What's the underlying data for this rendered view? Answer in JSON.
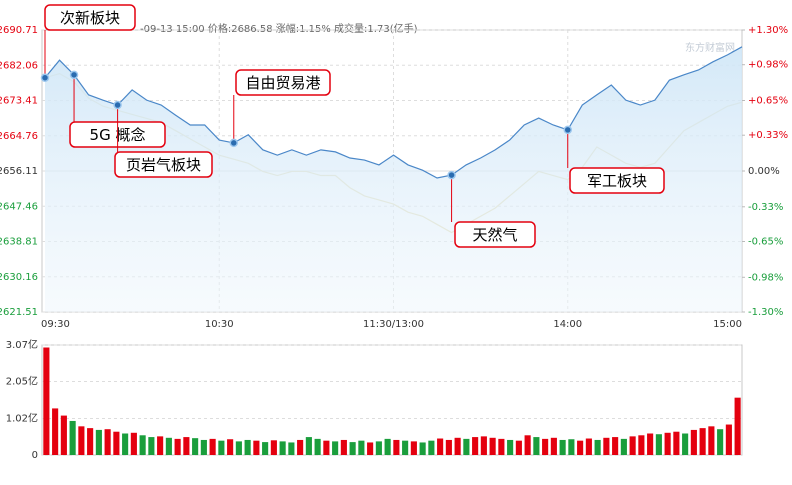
{
  "chart_data": [
    {
      "type": "line",
      "subtitle": "-09-13 15:00 价格:2686.58 涨幅:1.15% 成交量:1.73(亿手)",
      "watermark": "东方财富网",
      "x": [
        0,
        5,
        10,
        15,
        20,
        25,
        30,
        35,
        40,
        45,
        50,
        55,
        60,
        65,
        70,
        75,
        80,
        85,
        90,
        95,
        100,
        105,
        110,
        115,
        120,
        125,
        130,
        135,
        140,
        145,
        150,
        155,
        160,
        165,
        170,
        175,
        180,
        185,
        190,
        195,
        200,
        205,
        210,
        215,
        220,
        225,
        230,
        235,
        240
      ],
      "xlim": [
        0,
        240
      ],
      "xticks": [
        {
          "value": 0,
          "label": "09:30"
        },
        {
          "value": 60,
          "label": "10:30"
        },
        {
          "value": 120,
          "label": "11:30/13:00"
        },
        {
          "value": 180,
          "label": "14:00"
        },
        {
          "value": 240,
          "label": "15:00"
        }
      ],
      "ylim": [
        2621.51,
        2690.71
      ],
      "yticks": [
        2690.71,
        2682.06,
        2673.41,
        2664.76,
        2656.11,
        2647.46,
        2638.81,
        2630.16,
        2621.51
      ],
      "y2lim": [
        -1.3,
        1.3
      ],
      "y2ticks": [
        {
          "value": 1.3,
          "label": "+1.30%"
        },
        {
          "value": 0.98,
          "label": "+0.98%"
        },
        {
          "value": 0.65,
          "label": "+0.65%"
        },
        {
          "value": 0.33,
          "label": "+0.33%"
        },
        {
          "value": 0,
          "label": "0.00%"
        },
        {
          "value": -0.33,
          "label": "-0.33%"
        },
        {
          "value": -0.65,
          "label": "-0.65%"
        },
        {
          "value": -0.98,
          "label": "-0.98%"
        },
        {
          "value": -1.3,
          "label": "-1.30%"
        }
      ],
      "up_color": "#e4000f",
      "down_color": "#1a9e3c",
      "grid": true,
      "series": [
        {
          "color": "#4a87c8",
          "values": [
            2679,
            2683.3,
            2679.7,
            2674.8,
            2673.5,
            2672.3,
            2676,
            2673.5,
            2672.3,
            2669.8,
            2667.4,
            2667.4,
            2663.7,
            2663,
            2665,
            2661.3,
            2660,
            2661.3,
            2660,
            2661.3,
            2660.8,
            2659.3,
            2658.8,
            2657.6,
            2660,
            2657.6,
            2656.3,
            2654.4,
            2655.1,
            2657.6,
            2659.3,
            2661.3,
            2663.7,
            2667.4,
            2669.1,
            2667.4,
            2666.2,
            2672.3,
            2674.8,
            2677.2,
            2673.5,
            2672.3,
            2673.5,
            2678.4,
            2679.7,
            2680.9,
            2682.9,
            2684.6,
            2686.58
          ]
        },
        {
          "color": "#e6dcae",
          "values": [
            2679,
            2680,
            2678,
            2674,
            2672,
            2671,
            2670,
            2669,
            2668,
            2666,
            2664,
            2662,
            2660,
            2659,
            2658,
            2656,
            2655,
            2656,
            2656,
            2655,
            2655,
            2652,
            2650,
            2649,
            2648,
            2646,
            2645,
            2643,
            2641,
            2643,
            2645,
            2647,
            2650,
            2653,
            2656,
            2655,
            2654,
            2657,
            2662,
            2660,
            2658,
            2657,
            2658,
            2662,
            2666,
            2668,
            2670,
            2672,
            2673
          ]
        }
      ],
      "annotations": [
        {
          "label": "次新板块",
          "x": 0
        },
        {
          "label": "5G 概念",
          "x": 10
        },
        {
          "label": "页岩气板块",
          "x": 25
        },
        {
          "label": "自由贸易港",
          "x": 65
        },
        {
          "label": "天然气",
          "x": 140
        },
        {
          "label": "军工板块",
          "x": 180
        }
      ]
    },
    {
      "type": "bar",
      "ylim": [
        0,
        3.07
      ],
      "yticks": [
        {
          "value": 3.07,
          "label": "3.07亿"
        },
        {
          "value": 2.05,
          "label": "2.05亿"
        },
        {
          "value": 1.02,
          "label": "1.02亿"
        },
        0
      ],
      "values": [
        3.0,
        1.3,
        1.1,
        0.95,
        0.8,
        0.75,
        0.7,
        0.72,
        0.65,
        0.6,
        0.62,
        0.55,
        0.5,
        0.52,
        0.48,
        0.45,
        0.5,
        0.47,
        0.42,
        0.45,
        0.4,
        0.44,
        0.38,
        0.42,
        0.4,
        0.36,
        0.41,
        0.38,
        0.35,
        0.42,
        0.5,
        0.45,
        0.4,
        0.38,
        0.42,
        0.36,
        0.4,
        0.35,
        0.38,
        0.45,
        0.42,
        0.4,
        0.38,
        0.35,
        0.4,
        0.46,
        0.42,
        0.48,
        0.45,
        0.5,
        0.52,
        0.48,
        0.45,
        0.42,
        0.4,
        0.55,
        0.5,
        0.45,
        0.48,
        0.42,
        0.44,
        0.4,
        0.46,
        0.42,
        0.48,
        0.5,
        0.45,
        0.52,
        0.55,
        0.6,
        0.58,
        0.62,
        0.65,
        0.6,
        0.7,
        0.75,
        0.8,
        0.72,
        0.85,
        1.6
      ],
      "colors": [
        "#e4000f",
        "#e4000f",
        "#e4000f",
        "#1a9e3c",
        "#e4000f",
        "#e4000f",
        "#1a9e3c",
        "#e4000f",
        "#e4000f",
        "#1a9e3c",
        "#e4000f",
        "#1a9e3c",
        "#1a9e3c",
        "#e4000f",
        "#1a9e3c",
        "#e4000f",
        "#e4000f",
        "#1a9e3c",
        "#1a9e3c",
        "#e4000f",
        "#1a9e3c",
        "#e4000f",
        "#1a9e3c",
        "#1a9e3c",
        "#e4000f",
        "#1a9e3c",
        "#e4000f",
        "#1a9e3c",
        "#1a9e3c",
        "#e4000f",
        "#1a9e3c",
        "#1a9e3c",
        "#e4000f",
        "#1a9e3c",
        "#e4000f",
        "#1a9e3c",
        "#1a9e3c",
        "#e4000f",
        "#1a9e3c",
        "#1a9e3c",
        "#e4000f",
        "#1a9e3c",
        "#e4000f",
        "#1a9e3c",
        "#1a9e3c",
        "#e4000f",
        "#e4000f",
        "#e4000f",
        "#1a9e3c",
        "#e4000f",
        "#e4000f",
        "#e4000f",
        "#e4000f",
        "#1a9e3c",
        "#e4000f",
        "#e4000f",
        "#1a9e3c",
        "#e4000f",
        "#e4000f",
        "#1a9e3c",
        "#1a9e3c",
        "#e4000f",
        "#e4000f",
        "#1a9e3c",
        "#e4000f",
        "#e4000f",
        "#1a9e3c",
        "#e4000f",
        "#e4000f",
        "#e4000f",
        "#1a9e3c",
        "#e4000f",
        "#e4000f",
        "#1a9e3c",
        "#e4000f",
        "#e4000f",
        "#e4000f",
        "#1a9e3c",
        "#e4000f",
        "#e4000f"
      ]
    }
  ]
}
